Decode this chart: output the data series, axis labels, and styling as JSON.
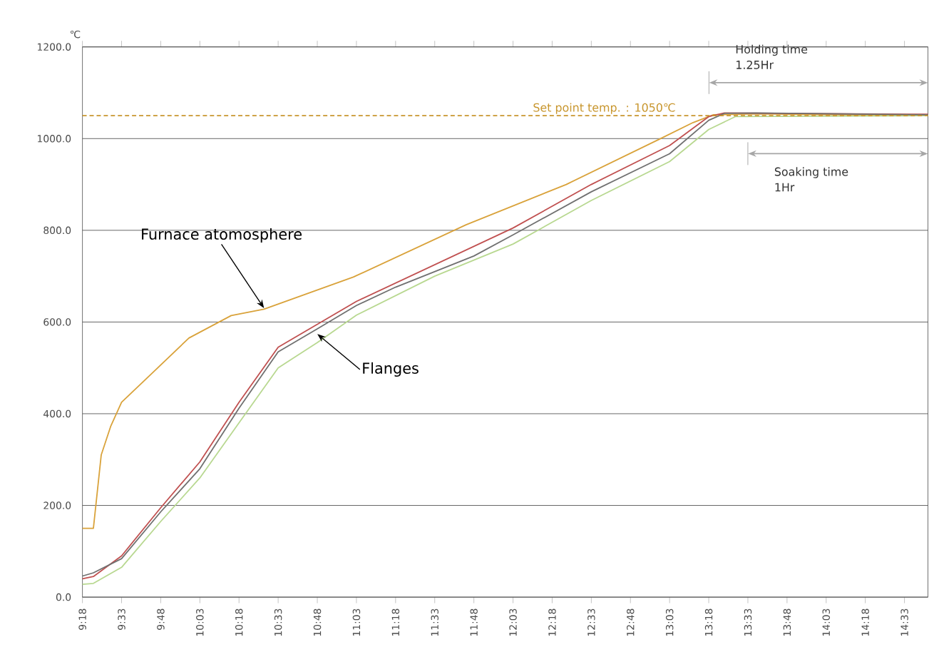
{
  "chart_data": {
    "type": "line",
    "ylabel": "℃",
    "series": [
      {
        "color": "#d9a23a",
        "x": [
          9.3,
          9.37,
          9.42,
          9.48,
          9.55,
          9.75,
          9.98,
          10.25,
          10.46,
          11.03,
          11.75,
          12.39,
          12.98,
          13.2,
          13.33,
          13.6,
          14.7
        ],
        "values": [
          150,
          150,
          310,
          372,
          425,
          490,
          565,
          614,
          628,
          698,
          812,
          900,
          998,
          1035,
          1052,
          1054,
          1050
        ]
      },
      {
        "color": "#b8d890",
        "x": [
          9.3,
          9.37,
          9.55,
          9.8,
          10.05,
          10.3,
          10.55,
          10.8,
          11.05,
          11.55,
          12.05,
          12.55,
          13.05,
          13.3,
          13.47,
          14.7
        ],
        "values": [
          28,
          30,
          65,
          165,
          260,
          380,
          500,
          555,
          615,
          700,
          770,
          865,
          950,
          1020,
          1048,
          1050
        ]
      },
      {
        "color": "#c05050",
        "x": [
          9.3,
          9.37,
          9.55,
          9.8,
          10.05,
          10.3,
          10.55,
          10.8,
          11.05,
          11.55,
          12.05,
          12.55,
          13.05,
          13.3,
          13.4,
          14.7
        ],
        "values": [
          40,
          45,
          90,
          195,
          295,
          425,
          545,
          595,
          645,
          725,
          805,
          900,
          985,
          1048,
          1056,
          1053
        ]
      },
      {
        "color": "#707070",
        "x": [
          9.3,
          9.37,
          9.55,
          9.8,
          10.05,
          10.3,
          10.55,
          10.8,
          11.05,
          11.3,
          11.55,
          11.8,
          12.05,
          12.55,
          13.05,
          13.3,
          13.4,
          13.6,
          14.7
        ],
        "values": [
          46,
          53,
          84,
          186,
          280,
          412,
          535,
          585,
          636,
          676,
          710,
          744,
          790,
          884,
          967,
          1040,
          1055,
          1056,
          1052
        ]
      }
    ],
    "xlim": [
      9.3,
      14.7
    ],
    "ylim": [
      0,
      1200
    ],
    "xticks": [
      {
        "value": 9.3,
        "label": "9:18"
      },
      {
        "value": 9.55,
        "label": "9:33"
      },
      {
        "value": 9.8,
        "label": "9:48"
      },
      {
        "value": 10.05,
        "label": "10:03"
      },
      {
        "value": 10.3,
        "label": "10:18"
      },
      {
        "value": 10.55,
        "label": "10:33"
      },
      {
        "value": 10.8,
        "label": "10:48"
      },
      {
        "value": 11.05,
        "label": "11:03"
      },
      {
        "value": 11.3,
        "label": "11:18"
      },
      {
        "value": 11.55,
        "label": "11:33"
      },
      {
        "value": 11.8,
        "label": "11:48"
      },
      {
        "value": 12.05,
        "label": "12:03"
      },
      {
        "value": 12.3,
        "label": "12:18"
      },
      {
        "value": 12.55,
        "label": "12:33"
      },
      {
        "value": 12.8,
        "label": "12:48"
      },
      {
        "value": 13.05,
        "label": "13:03"
      },
      {
        "value": 13.3,
        "label": "13:18"
      },
      {
        "value": 13.55,
        "label": "13:33"
      },
      {
        "value": 13.8,
        "label": "13:48"
      },
      {
        "value": 14.05,
        "label": "14:03"
      },
      {
        "value": 14.3,
        "label": "14:18"
      },
      {
        "value": 14.55,
        "label": "14:33"
      }
    ],
    "yticks": [
      {
        "value": 0,
        "label": "0.0"
      },
      {
        "value": 200,
        "label": "200.0"
      },
      {
        "value": 400,
        "label": "400.0"
      },
      {
        "value": 600,
        "label": "600.0"
      },
      {
        "value": 800,
        "label": "800.0"
      },
      {
        "value": 1000,
        "label": "1000.0"
      },
      {
        "value": 1200,
        "label": "1200.0"
      }
    ],
    "grid": "y",
    "line_style": "solid",
    "marker": "none",
    "ref_lines": [
      {
        "axis": "y",
        "value": 1050,
        "label": "Set point temp. : 1050℃",
        "color": "#c8962e",
        "line_style": "dashed"
      }
    ],
    "annotations": [
      {
        "text": "Furnace atomosphere",
        "x": 10.46,
        "y": 630
      },
      {
        "text": "Flanges",
        "x": 10.8,
        "y": 574
      },
      "Holding time\n1.25Hr",
      "Soaking time\n1Hr"
    ]
  }
}
